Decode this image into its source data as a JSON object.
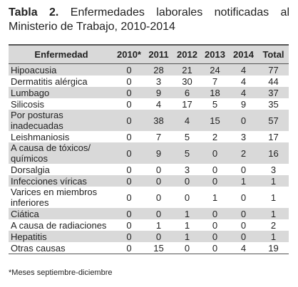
{
  "title": {
    "label": "Tabla 2.",
    "text": "Enfermedades laborales notificadas al Ministerio de Trabajo, 2010-2014"
  },
  "table": {
    "header": [
      "Enfermedad",
      "2010*",
      "2011",
      "2012",
      "2013",
      "2014",
      "Total"
    ],
    "rows": [
      [
        "Hipoacusia",
        0,
        28,
        21,
        24,
        4,
        77
      ],
      [
        "Dermatitis alérgica",
        0,
        3,
        30,
        7,
        4,
        44
      ],
      [
        "Lumbago",
        0,
        9,
        6,
        18,
        4,
        37
      ],
      [
        "Silicosis",
        0,
        4,
        17,
        5,
        9,
        35
      ],
      [
        "Por posturas\ninadecuadas",
        0,
        38,
        4,
        15,
        0,
        57
      ],
      [
        "Leishmaniosis",
        0,
        7,
        5,
        2,
        3,
        17
      ],
      [
        "A causa de tóxicos/\nquímicos",
        0,
        9,
        5,
        0,
        2,
        16
      ],
      [
        "Dorsalgia",
        0,
        0,
        3,
        0,
        0,
        3
      ],
      [
        "Infecciones víricas",
        0,
        0,
        0,
        0,
        1,
        1
      ],
      [
        "Varices en miembros\ninferiores",
        0,
        0,
        0,
        1,
        0,
        1
      ],
      [
        "Ciática",
        0,
        0,
        1,
        0,
        0,
        1
      ],
      [
        "A causa de radiaciones",
        0,
        1,
        1,
        0,
        0,
        2
      ],
      [
        "Hepatitis",
        0,
        0,
        1,
        0,
        0,
        1
      ],
      [
        "Otras causas",
        0,
        15,
        0,
        0,
        4,
        19
      ]
    ]
  },
  "footnote": "*Meses septiembre-diciembre"
}
